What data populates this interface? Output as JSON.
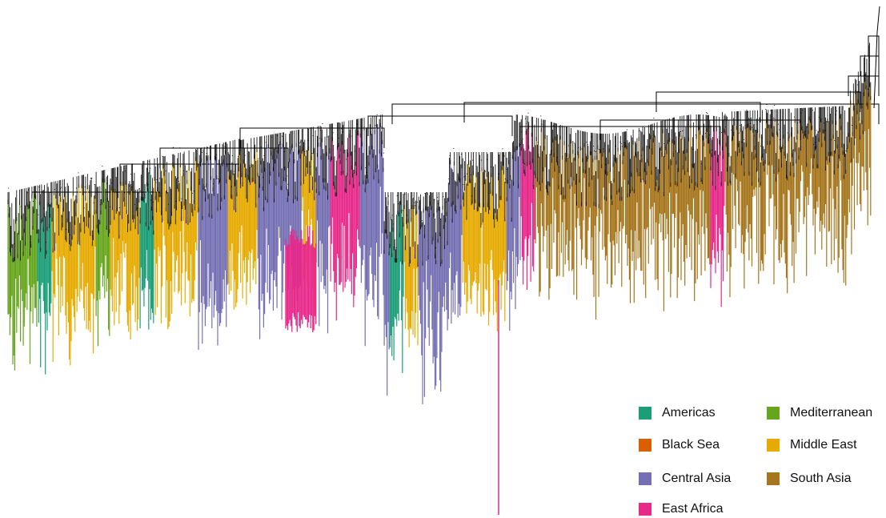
{
  "legend": {
    "items": [
      {
        "label": "Americas",
        "color": "#1b9e77"
      },
      {
        "label": "Black Sea",
        "color": "#d95f02"
      },
      {
        "label": "Central Asia",
        "color": "#7570b3"
      },
      {
        "label": "East Africa",
        "color": "#e7298a"
      },
      {
        "label": "Mediterranean",
        "color": "#66a61e"
      },
      {
        "label": "Middle East",
        "color": "#e6ab02"
      },
      {
        "label": "South Asia",
        "color": "#a6761d"
      }
    ]
  },
  "tree": {
    "branch_color": "#000000",
    "clade_sequence": [
      {
        "region": "Mediterranean",
        "weight": 2
      },
      {
        "region": "Americas",
        "weight": 1
      },
      {
        "region": "Middle East",
        "weight": 3
      },
      {
        "region": "Mediterranean",
        "weight": 1
      },
      {
        "region": "Middle East",
        "weight": 2
      },
      {
        "region": "Americas",
        "weight": 1
      },
      {
        "region": "Middle East",
        "weight": 3
      },
      {
        "region": "Central Asia",
        "weight": 2
      },
      {
        "region": "Middle East",
        "weight": 2
      },
      {
        "region": "Central Asia",
        "weight": 3
      },
      {
        "region": "Middle East",
        "weight": 1
      },
      {
        "region": "Central Asia",
        "weight": 1
      },
      {
        "region": "East Africa",
        "weight": 2
      },
      {
        "region": "Central Asia",
        "weight": 2
      },
      {
        "region": "Americas",
        "weight": 1
      },
      {
        "region": "Middle East",
        "weight": 1
      },
      {
        "region": "Central Asia",
        "weight": 3
      },
      {
        "region": "Middle East",
        "weight": 3
      },
      {
        "region": "Central Asia",
        "weight": 1
      },
      {
        "region": "East Africa",
        "weight": 1
      },
      {
        "region": "South Asia",
        "weight": 12
      },
      {
        "region": "East Africa",
        "weight": 1
      },
      {
        "region": "South Asia",
        "weight": 10
      }
    ]
  }
}
